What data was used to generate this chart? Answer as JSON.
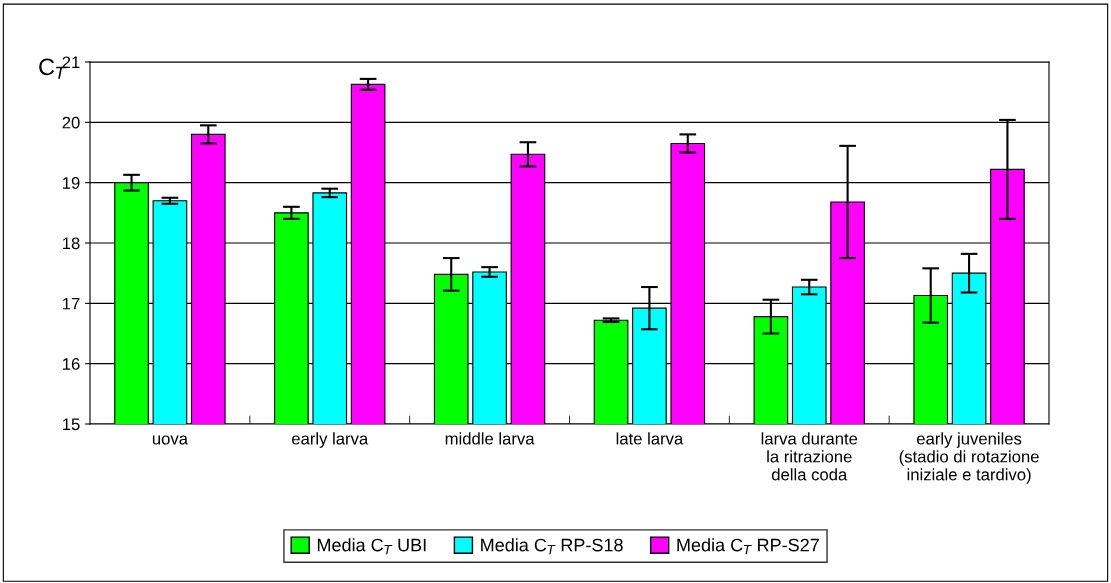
{
  "chart_data": {
    "type": "bar",
    "ylabel": "C$_{T}$",
    "categories": [
      "uova",
      "early larva",
      "middle larva",
      "late larva",
      "larva durante\nla ritrazione\ndella coda",
      "early juveniles\n(stadio di rotazione\niniziale e tardivo)"
    ],
    "series": [
      {
        "name": "Media C$_{T}$ UBI",
        "color": "#00ff00",
        "values": [
          19.0,
          18.5,
          17.48,
          16.72,
          16.78,
          17.13
        ],
        "errors": [
          0.13,
          0.1,
          0.27,
          0.03,
          0.28,
          0.45
        ]
      },
      {
        "name": "Media C$_{T}$ RP-S18",
        "color": "#00ffff",
        "values": [
          18.7,
          18.83,
          17.52,
          16.92,
          17.27,
          17.5
        ],
        "errors": [
          0.05,
          0.07,
          0.08,
          0.35,
          0.12,
          0.32
        ]
      },
      {
        "name": "Media C$_{T}$ RP-S27",
        "color": "#ff00ff",
        "values": [
          19.8,
          20.63,
          19.47,
          19.65,
          18.68,
          19.22
        ],
        "errors": [
          0.15,
          0.09,
          0.2,
          0.15,
          0.93,
          0.82
        ]
      }
    ],
    "ylim": [
      15,
      21
    ],
    "yticks": [
      15,
      16,
      17,
      18,
      19,
      20,
      21
    ],
    "grid": "y",
    "legend": "bottom"
  }
}
